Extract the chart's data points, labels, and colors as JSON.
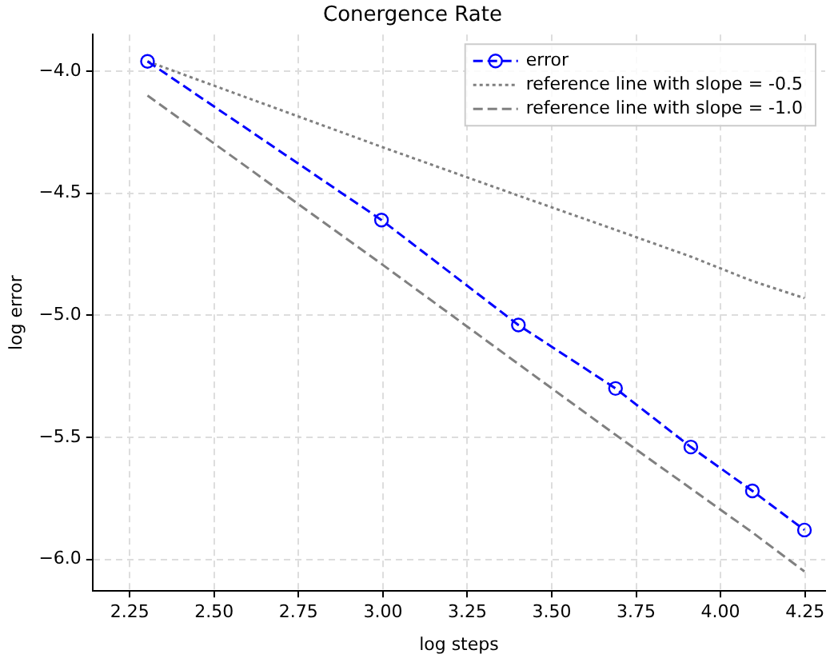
{
  "chart_data": {
    "type": "line",
    "title": "Conergence Rate",
    "xlabel": "log steps",
    "ylabel": "log error",
    "x": [
      2.3026,
      2.9957,
      3.4012,
      3.6889,
      3.912,
      4.0943,
      4.2485
    ],
    "series": [
      {
        "name": "error",
        "color": "#0000ff",
        "values": [
          -3.96,
          -4.61,
          -5.04,
          -5.3,
          -5.54,
          -5.72,
          -5.88
        ],
        "marker": "circle",
        "line_style": "dashed"
      },
      {
        "name": "reference line with slope = -0.5",
        "color": "#808080",
        "values": [
          -3.96,
          -4.31,
          -4.51,
          -4.65,
          -4.76,
          -4.86,
          -4.93
        ],
        "marker": "none",
        "line_style": "dotted"
      },
      {
        "name": "reference line with slope = -1.0",
        "color": "#808080",
        "values": [
          -4.1,
          -4.79,
          -5.2,
          -5.49,
          -5.71,
          -5.89,
          -6.05
        ],
        "marker": "none",
        "line_style": "dashed"
      }
    ],
    "xlim": [
      2.14,
      4.31
    ],
    "xticks": [
      {
        "value": 2.25,
        "label": "2.25"
      },
      {
        "value": 2.5,
        "label": "2.50"
      },
      {
        "value": 2.75,
        "label": "2.75"
      },
      {
        "value": 3,
        "label": "3.00"
      },
      {
        "value": 3.25,
        "label": "3.25"
      },
      {
        "value": 3.5,
        "label": "3.50"
      },
      {
        "value": 3.75,
        "label": "3.75"
      },
      {
        "value": 4,
        "label": "4.00"
      },
      {
        "value": 4.25,
        "label": "4.25"
      }
    ],
    "ylim": [
      -6.13,
      -3.85
    ],
    "yticks": [
      {
        "value": -6,
        "label": "−6.0"
      },
      {
        "value": -5.5,
        "label": "−5.5"
      },
      {
        "value": -5,
        "label": "−5.0"
      },
      {
        "value": -4.5,
        "label": "−4.5"
      },
      {
        "value": -4,
        "label": "−4.0"
      }
    ],
    "grid": true,
    "legend": "top right"
  }
}
